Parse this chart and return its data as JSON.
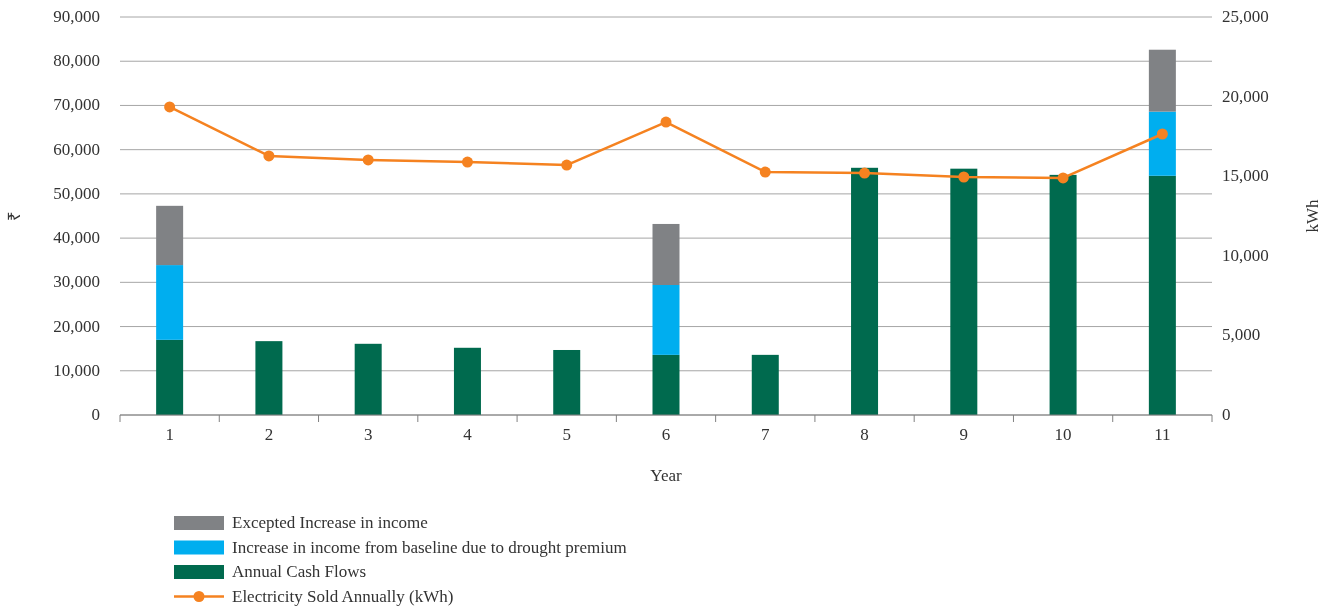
{
  "chart_data": {
    "type": "bar",
    "stacked": true,
    "xlabel": "Year",
    "ylabel": "₹",
    "y2label": "kWh",
    "categories": [
      "1",
      "2",
      "3",
      "4",
      "5",
      "6",
      "7",
      "8",
      "9",
      "10",
      "11"
    ],
    "series": [
      {
        "name": "Annual Cash Flows",
        "color": "#006a4e",
        "values": [
          17000,
          16700,
          16100,
          15200,
          14700,
          13600,
          13600,
          55900,
          55700,
          54300,
          54100
        ]
      },
      {
        "name": "Increase in income from baseline due to drought premium",
        "color": "#00aeef",
        "values": [
          16900,
          null,
          null,
          null,
          null,
          15800,
          null,
          null,
          null,
          null,
          14500
        ]
      },
      {
        "name": "Excepted Increase in income",
        "color": "#808285",
        "values": [
          13400,
          null,
          null,
          null,
          null,
          13800,
          null,
          null,
          null,
          null,
          14000
        ]
      },
      {
        "name": "Electricity Sold Annually (kWh)",
        "type": "line",
        "axis": "y2",
        "color": "#f58220",
        "values": [
          19350,
          16270,
          16020,
          15890,
          15700,
          18400,
          15260,
          15200,
          14950,
          14890,
          17650
        ]
      }
    ],
    "ylim": [
      0,
      90000
    ],
    "yticks": [
      {
        "value": 0,
        "label": "0"
      },
      {
        "value": 10000,
        "label": "10,000"
      },
      {
        "value": 20000,
        "label": "20,000"
      },
      {
        "value": 30000,
        "label": "30,000"
      },
      {
        "value": 40000,
        "label": "40,000"
      },
      {
        "value": 50000,
        "label": "50,000"
      },
      {
        "value": 60000,
        "label": "60,000"
      },
      {
        "value": 70000,
        "label": "70,000"
      },
      {
        "value": 80000,
        "label": "80,000"
      },
      {
        "value": 90000,
        "label": "90,000"
      }
    ],
    "y2lim": [
      0,
      25000
    ],
    "y2ticks": [
      {
        "value": 0,
        "label": "0"
      },
      {
        "value": 5000,
        "label": "5,000"
      },
      {
        "value": 10000,
        "label": "10,000"
      },
      {
        "value": 15000,
        "label": "15,000"
      },
      {
        "value": 20000,
        "label": "20,000"
      },
      {
        "value": 25000,
        "label": "25,000"
      }
    ],
    "grid": "y",
    "legend": "bottom",
    "marker": "circle"
  }
}
